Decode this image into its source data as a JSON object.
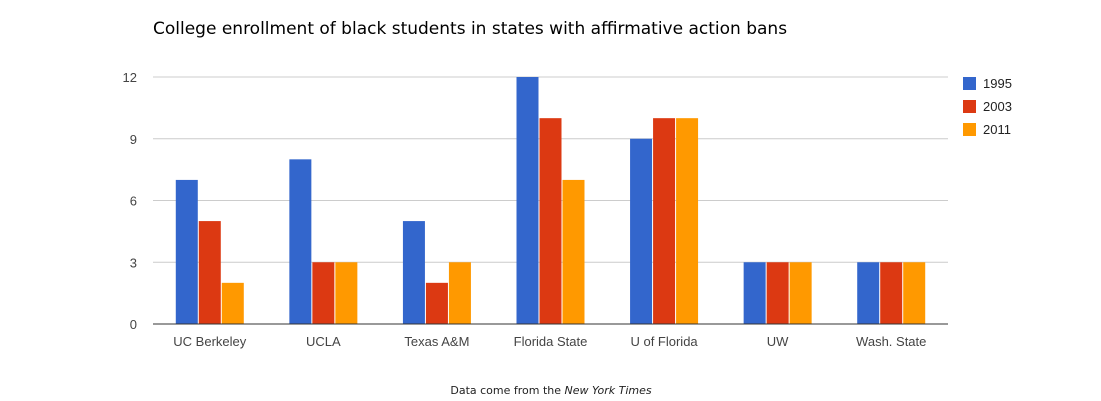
{
  "chart_data": {
    "type": "bar",
    "title": "College enrollment of black students in states with affirmative action bans",
    "categories": [
      "UC Berkeley",
      "UCLA",
      "Texas A&M",
      "Florida State",
      "U of Florida",
      "UW",
      "Wash. State"
    ],
    "series": [
      {
        "name": "1995",
        "color": "#3366cc",
        "values": [
          7,
          8,
          5,
          12,
          9,
          3,
          3
        ]
      },
      {
        "name": "2003",
        "color": "#dc3912",
        "values": [
          5,
          3,
          2,
          10,
          10,
          3,
          3
        ]
      },
      {
        "name": "2011",
        "color": "#ff9900",
        "values": [
          2,
          3,
          3,
          7,
          10,
          3,
          3
        ]
      }
    ],
    "ylim": [
      0,
      12
    ],
    "yticks": [
      0,
      3,
      6,
      9,
      12
    ],
    "grid": true,
    "legend_position": "right",
    "xlabel": "",
    "ylabel": ""
  },
  "footer": {
    "source_prefix": "Data come from the ",
    "source_name": "New York Times"
  }
}
